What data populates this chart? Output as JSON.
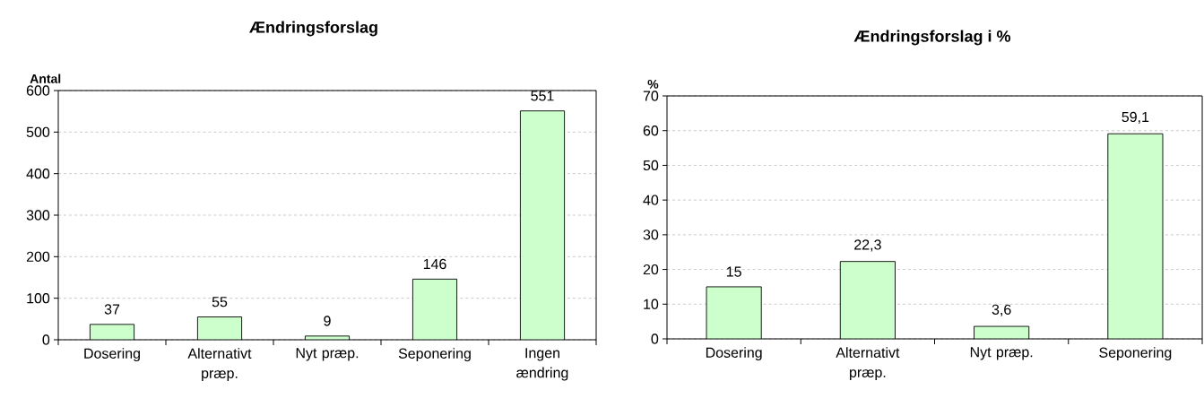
{
  "chart_data": [
    {
      "type": "bar",
      "title": "Ændringsforslag",
      "ylabel": "Antal",
      "categories": [
        "Dosering",
        "Alternativt præp.",
        "Nyt præp.",
        "Seponering",
        "Ingen ændring"
      ],
      "values": [
        37,
        55,
        9,
        146,
        551
      ],
      "color": "#ccffcc",
      "ylim": [
        0,
        600
      ],
      "yticks": [
        0,
        100,
        200,
        300,
        400,
        500,
        600
      ],
      "grid": "y",
      "data_labels": true
    },
    {
      "type": "bar",
      "title": "Ændringsforslag i %",
      "ylabel": "%",
      "categories": [
        "Dosering",
        "Alternativt præp.",
        "Nyt præp.",
        "Seponering"
      ],
      "values": [
        15,
        22.3,
        3.6,
        59.1
      ],
      "value_labels": [
        "15",
        "22,3",
        "3,6",
        "59,1"
      ],
      "color": "#ccffcc",
      "ylim": [
        0,
        70
      ],
      "yticks": [
        0,
        10,
        20,
        30,
        40,
        50,
        60,
        70
      ],
      "grid": "y"
    }
  ]
}
